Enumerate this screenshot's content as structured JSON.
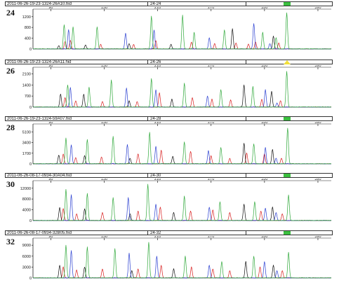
{
  "colors": {
    "green": "#2fa83a",
    "blue": "#2a3fd1",
    "black": "#111111",
    "red": "#d81f1f",
    "status_green": "#3bbf3f",
    "status_yellow": "#f2e03a"
  },
  "chart_data": [
    {
      "type": "line",
      "filename": "2011-06-26-19-23-1324-26A10.hid",
      "lane_tag": "24-24",
      "lane_label": "24",
      "status": "green",
      "x_ticks": [
        "90",
        "150",
        "210",
        "270",
        "330",
        "390"
      ],
      "y_ticks": [
        "400",
        "800",
        "1200"
      ],
      "xlim": [
        70,
        405
      ],
      "ylim": [
        0,
        1350
      ],
      "series": [
        {
          "color": "green",
          "peaks": [
            {
              "x": 105,
              "y": 900
            },
            {
              "x": 115,
              "y": 820
            },
            {
              "x": 142,
              "y": 820
            },
            {
              "x": 203,
              "y": 1220
            },
            {
              "x": 238,
              "y": 1250
            },
            {
              "x": 251,
              "y": 620
            },
            {
              "x": 285,
              "y": 700
            },
            {
              "x": 328,
              "y": 620
            },
            {
              "x": 343,
              "y": 420
            },
            {
              "x": 355,
              "y": 1340
            }
          ]
        },
        {
          "color": "blue",
          "peaks": [
            {
              "x": 110,
              "y": 720
            },
            {
              "x": 174,
              "y": 580
            },
            {
              "x": 206,
              "y": 700
            },
            {
              "x": 268,
              "y": 420
            },
            {
              "x": 318,
              "y": 950
            },
            {
              "x": 336,
              "y": 200
            }
          ]
        },
        {
          "color": "black",
          "peaks": [
            {
              "x": 99,
              "y": 120
            },
            {
              "x": 129,
              "y": 150
            },
            {
              "x": 178,
              "y": 200
            },
            {
              "x": 225,
              "y": 180
            },
            {
              "x": 294,
              "y": 750
            },
            {
              "x": 340,
              "y": 480
            }
          ]
        },
        {
          "color": "red",
          "peaks": [
            {
              "x": 106,
              "y": 280
            },
            {
              "x": 112,
              "y": 320
            },
            {
              "x": 146,
              "y": 180
            },
            {
              "x": 183,
              "y": 170
            },
            {
              "x": 208,
              "y": 300
            },
            {
              "x": 248,
              "y": 260
            },
            {
              "x": 274,
              "y": 200
            },
            {
              "x": 298,
              "y": 230
            },
            {
              "x": 312,
              "y": 180
            },
            {
              "x": 320,
              "y": 260
            },
            {
              "x": 346,
              "y": 220
            }
          ]
        }
      ]
    },
    {
      "type": "line",
      "filename": "2011-06-26-19-23-1324-26A11.hid",
      "lane_tag": "24-26",
      "lane_label": "26",
      "status": "yellow",
      "x_ticks": [
        "90",
        "150",
        "210",
        "270",
        "330",
        "390"
      ],
      "y_ticks": [
        "700",
        "1400",
        "2100"
      ],
      "xlim": [
        70,
        405
      ],
      "ylim": [
        0,
        2300
      ],
      "series": [
        {
          "color": "green",
          "peaks": [
            {
              "x": 109,
              "y": 1400
            },
            {
              "x": 133,
              "y": 1250
            },
            {
              "x": 158,
              "y": 1700
            },
            {
              "x": 203,
              "y": 1800
            },
            {
              "x": 240,
              "y": 1500
            },
            {
              "x": 281,
              "y": 1100
            },
            {
              "x": 317,
              "y": 1300
            },
            {
              "x": 355,
              "y": 2250
            }
          ]
        },
        {
          "color": "blue",
          "peaks": [
            {
              "x": 112,
              "y": 1250
            },
            {
              "x": 175,
              "y": 1200
            },
            {
              "x": 208,
              "y": 1100
            },
            {
              "x": 266,
              "y": 700
            },
            {
              "x": 331,
              "y": 1100
            },
            {
              "x": 344,
              "y": 250
            }
          ]
        },
        {
          "color": "black",
          "peaks": [
            {
              "x": 101,
              "y": 820
            },
            {
              "x": 127,
              "y": 820
            },
            {
              "x": 178,
              "y": 400
            },
            {
              "x": 226,
              "y": 500
            },
            {
              "x": 307,
              "y": 1400
            },
            {
              "x": 338,
              "y": 1000
            }
          ]
        },
        {
          "color": "red",
          "peaks": [
            {
              "x": 106,
              "y": 600
            },
            {
              "x": 118,
              "y": 400
            },
            {
              "x": 148,
              "y": 350
            },
            {
              "x": 187,
              "y": 350
            },
            {
              "x": 212,
              "y": 900
            },
            {
              "x": 249,
              "y": 600
            },
            {
              "x": 271,
              "y": 500
            },
            {
              "x": 292,
              "y": 450
            },
            {
              "x": 327,
              "y": 500
            },
            {
              "x": 348,
              "y": 400
            }
          ]
        }
      ]
    },
    {
      "type": "line",
      "filename": "2011-06-26-19-23-1324-59A07.hid",
      "lane_tag": "24-28",
      "lane_label": "28",
      "status": "green",
      "x_ticks": [
        "90",
        "150",
        "210",
        "270",
        "330",
        "390"
      ],
      "y_ticks": [
        "1700",
        "3400",
        "5100"
      ],
      "xlim": [
        70,
        405
      ],
      "ylim": [
        0,
        5800
      ],
      "series": [
        {
          "color": "green",
          "peaks": [
            {
              "x": 107,
              "y": 4100
            },
            {
              "x": 131,
              "y": 3900
            },
            {
              "x": 160,
              "y": 4400
            },
            {
              "x": 201,
              "y": 5000
            },
            {
              "x": 240,
              "y": 3500
            },
            {
              "x": 281,
              "y": 2600
            },
            {
              "x": 318,
              "y": 3200
            },
            {
              "x": 356,
              "y": 5700
            }
          ]
        },
        {
          "color": "blue",
          "peaks": [
            {
              "x": 113,
              "y": 3000
            },
            {
              "x": 176,
              "y": 3100
            },
            {
              "x": 208,
              "y": 2800
            },
            {
              "x": 267,
              "y": 2100
            },
            {
              "x": 331,
              "y": 2600
            },
            {
              "x": 343,
              "y": 900
            }
          ]
        },
        {
          "color": "black",
          "peaks": [
            {
              "x": 99,
              "y": 1400
            },
            {
              "x": 128,
              "y": 1300
            },
            {
              "x": 179,
              "y": 900
            },
            {
              "x": 227,
              "y": 1200
            },
            {
              "x": 307,
              "y": 3300
            },
            {
              "x": 339,
              "y": 2300
            }
          ]
        },
        {
          "color": "red",
          "peaks": [
            {
              "x": 104,
              "y": 1600
            },
            {
              "x": 118,
              "y": 1000
            },
            {
              "x": 147,
              "y": 1100
            },
            {
              "x": 188,
              "y": 1600
            },
            {
              "x": 214,
              "y": 2200
            },
            {
              "x": 247,
              "y": 2000
            },
            {
              "x": 270,
              "y": 1300
            },
            {
              "x": 291,
              "y": 900
            },
            {
              "x": 310,
              "y": 1700
            },
            {
              "x": 330,
              "y": 1600
            },
            {
              "x": 349,
              "y": 900
            }
          ]
        }
      ]
    },
    {
      "type": "line",
      "filename": "2011-06-26-08-17-0934-30A04.hid",
      "lane_tag": "24-30",
      "lane_label": "30",
      "status": "green",
      "x_ticks": [
        "90",
        "150",
        "210",
        "270",
        "330",
        "390"
      ],
      "y_ticks": [
        "4000",
        "8000",
        "12000"
      ],
      "xlim": [
        70,
        405
      ],
      "ylim": [
        0,
        13500
      ],
      "series": [
        {
          "color": "green",
          "peaks": [
            {
              "x": 107,
              "y": 11500
            },
            {
              "x": 131,
              "y": 10000
            },
            {
              "x": 160,
              "y": 8500
            },
            {
              "x": 199,
              "y": 13400
            },
            {
              "x": 240,
              "y": 9000
            },
            {
              "x": 280,
              "y": 7000
            },
            {
              "x": 319,
              "y": 7000
            },
            {
              "x": 357,
              "y": 9500
            }
          ]
        },
        {
          "color": "blue",
          "peaks": [
            {
              "x": 113,
              "y": 9500
            },
            {
              "x": 177,
              "y": 8500
            },
            {
              "x": 208,
              "y": 6000
            },
            {
              "x": 268,
              "y": 5000
            },
            {
              "x": 331,
              "y": 4500
            },
            {
              "x": 343,
              "y": 3000
            }
          ]
        },
        {
          "color": "black",
          "peaks": [
            {
              "x": 100,
              "y": 4800
            },
            {
              "x": 128,
              "y": 4300
            },
            {
              "x": 179,
              "y": 2500
            },
            {
              "x": 228,
              "y": 3000
            },
            {
              "x": 307,
              "y": 6000
            },
            {
              "x": 339,
              "y": 5000
            }
          ]
        },
        {
          "color": "red",
          "peaks": [
            {
              "x": 104,
              "y": 4500
            },
            {
              "x": 119,
              "y": 2500
            },
            {
              "x": 148,
              "y": 3000
            },
            {
              "x": 188,
              "y": 3500
            },
            {
              "x": 213,
              "y": 5000
            },
            {
              "x": 247,
              "y": 3500
            },
            {
              "x": 272,
              "y": 4000
            },
            {
              "x": 291,
              "y": 3000
            },
            {
              "x": 326,
              "y": 3500
            },
            {
              "x": 350,
              "y": 2500
            }
          ]
        }
      ]
    },
    {
      "type": "line",
      "filename": "2011-06-26-08-17-0934-32B05.hid",
      "lane_tag": "24-32",
      "lane_label": "32",
      "status": "green",
      "x_ticks": [
        "90",
        "150",
        "210",
        "270",
        "330",
        "390"
      ],
      "y_ticks": [
        "3000",
        "6000",
        "9000"
      ],
      "xlim": [
        70,
        405
      ],
      "ylim": [
        0,
        10000
      ],
      "series": [
        {
          "color": "green",
          "peaks": [
            {
              "x": 107,
              "y": 9000
            },
            {
              "x": 131,
              "y": 8500
            },
            {
              "x": 162,
              "y": 8000
            },
            {
              "x": 200,
              "y": 9800
            },
            {
              "x": 241,
              "y": 6000
            },
            {
              "x": 282,
              "y": 4500
            },
            {
              "x": 318,
              "y": 6000
            },
            {
              "x": 357,
              "y": 7000
            }
          ]
        },
        {
          "color": "blue",
          "peaks": [
            {
              "x": 113,
              "y": 7500
            },
            {
              "x": 178,
              "y": 6800
            },
            {
              "x": 209,
              "y": 6000
            },
            {
              "x": 268,
              "y": 3500
            },
            {
              "x": 330,
              "y": 4500
            },
            {
              "x": 344,
              "y": 2000
            }
          ]
        },
        {
          "color": "black",
          "peaks": [
            {
              "x": 100,
              "y": 3500
            },
            {
              "x": 128,
              "y": 3000
            },
            {
              "x": 181,
              "y": 2000
            },
            {
              "x": 228,
              "y": 2500
            },
            {
              "x": 309,
              "y": 4500
            },
            {
              "x": 340,
              "y": 3500
            }
          ]
        },
        {
          "color": "red",
          "peaks": [
            {
              "x": 104,
              "y": 3000
            },
            {
              "x": 119,
              "y": 2200
            },
            {
              "x": 148,
              "y": 2500
            },
            {
              "x": 188,
              "y": 2500
            },
            {
              "x": 214,
              "y": 3500
            },
            {
              "x": 248,
              "y": 3000
            },
            {
              "x": 272,
              "y": 2500
            },
            {
              "x": 291,
              "y": 2000
            },
            {
              "x": 325,
              "y": 3000
            },
            {
              "x": 350,
              "y": 2000
            }
          ]
        }
      ]
    }
  ]
}
